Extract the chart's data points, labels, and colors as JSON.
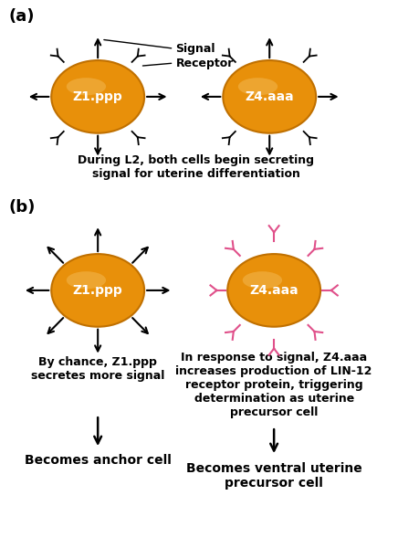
{
  "bg_color": "#ffffff",
  "cell_color_face": "#E8900A",
  "cell_color_edge": "#C07000",
  "cell_label_color": "white",
  "arrow_color_black": "black",
  "arrow_color_pink": "#E0508A",
  "label_a": "(a)",
  "label_b": "(b)",
  "cell1_label": "Z1.ppp",
  "cell2_label": "Z4.aaa",
  "signal_label": "Signal",
  "receptor_label": "Receptor",
  "caption_a": "During L2, both cells begin secreting\nsignal for uterine differentiation",
  "caption_b1": "By chance, Z1.ppp\nsecretes more signal",
  "caption_b2": "In response to signal, Z4.aaa\nincreases production of LIN-12\nreceptor protein, triggering\ndetermination as uterine\nprecursor cell",
  "bottom_b1": "Becomes anchor cell",
  "bottom_b2": "Becomes ventral uterine\nprecursor cell"
}
